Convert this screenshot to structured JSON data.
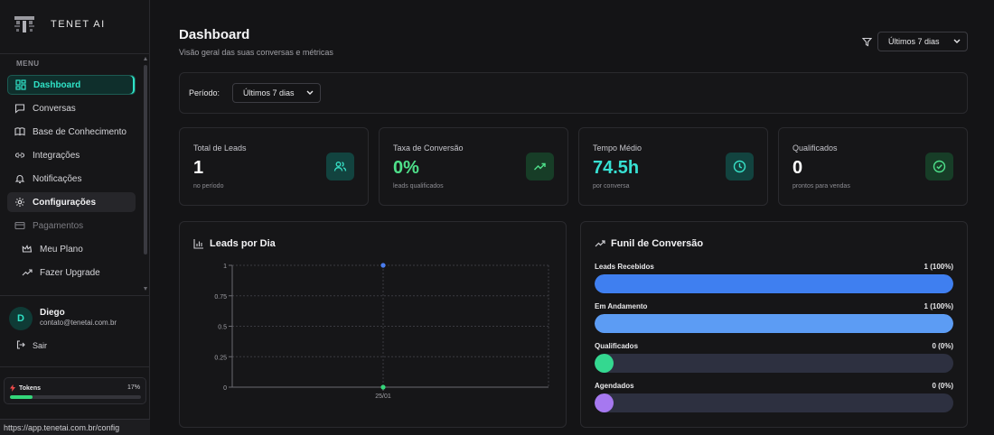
{
  "brand": {
    "name": "TENET AI"
  },
  "sidebar": {
    "menu_label": "MENU",
    "items": [
      {
        "label": "Dashboard",
        "icon": "dashboard-icon",
        "state": "active"
      },
      {
        "label": "Conversas",
        "icon": "chat-icon",
        "state": "normal"
      },
      {
        "label": "Base de Conhecimento",
        "icon": "book-icon",
        "state": "normal"
      },
      {
        "label": "Integrações",
        "icon": "link-icon",
        "state": "normal"
      },
      {
        "label": "Notificações",
        "icon": "bell-icon",
        "state": "normal"
      },
      {
        "label": "Configurações",
        "icon": "gear-icon",
        "state": "hover"
      },
      {
        "label": "Pagamentos",
        "icon": "card-icon",
        "state": "muted"
      },
      {
        "label": "Meu Plano",
        "icon": "crown-icon",
        "state": "sub"
      },
      {
        "label": "Fazer Upgrade",
        "icon": "trend-up-icon",
        "state": "sub"
      }
    ]
  },
  "user": {
    "initial": "D",
    "name": "Diego",
    "email": "contato@tenetai.com.br",
    "logout_label": "Sair"
  },
  "tokens": {
    "label": "Tokens",
    "percent_label": "17%",
    "percent": 17,
    "bar_color": "#34d67a"
  },
  "status_bar": {
    "url": "https://app.tenetai.com.br/config"
  },
  "header": {
    "title": "Dashboard",
    "subtitle": "Visão geral das suas conversas e métricas",
    "range_select": "Últimos 7 dias"
  },
  "period": {
    "label": "Período:",
    "value": "Últimos 7 dias"
  },
  "stats": [
    {
      "title": "Total de Leads",
      "value": "1",
      "sub": "no período",
      "icon": "users-icon",
      "value_color": "#ffffff",
      "badge_bg": "#12433f",
      "icon_color": "#37e0c6"
    },
    {
      "title": "Taxa de Conversão",
      "value": "0%",
      "sub": "leads qualificados",
      "icon": "trend-up-icon",
      "value_color": "#4ee08a",
      "badge_bg": "#173d27",
      "icon_color": "#4ee08a"
    },
    {
      "title": "Tempo Médio",
      "value": "74.5h",
      "sub": "por conversa",
      "icon": "clock-icon",
      "value_color": "#37e0d2",
      "badge_bg": "#12433f",
      "icon_color": "#37e0c6"
    },
    {
      "title": "Qualificados",
      "value": "0",
      "sub": "prontos para vendas",
      "icon": "check-circle-icon",
      "value_color": "#ffffff",
      "badge_bg": "#173d27",
      "icon_color": "#4ee08a"
    }
  ],
  "leads_chart": {
    "title": "Leads por Dia",
    "chart_data": {
      "type": "line",
      "categories": [
        "25/01"
      ],
      "yticks": [
        "1",
        "0.75",
        "0.5",
        "0.25",
        "0"
      ],
      "ylim": [
        0,
        1
      ],
      "series": [
        {
          "values": [
            0
          ],
          "color": "#34d67a"
        },
        {
          "values": [
            1
          ],
          "color": "#4a7df0"
        }
      ],
      "grid": true
    }
  },
  "funnel": {
    "title": "Funil de Conversão",
    "rows": [
      {
        "label": "Leads Recebidos",
        "value": "1 (100%)",
        "fraction": 1.0,
        "color": "#3f7ff0"
      },
      {
        "label": "Em Andamento",
        "value": "1 (100%)",
        "fraction": 1.0,
        "color": "#5c9cf4"
      },
      {
        "label": "Qualificados",
        "value": "0 (0%)",
        "fraction": 0.0,
        "color": "#34d890"
      },
      {
        "label": "Agendados",
        "value": "0 (0%)",
        "fraction": 0.0,
        "color": "#a678f0"
      }
    ]
  }
}
